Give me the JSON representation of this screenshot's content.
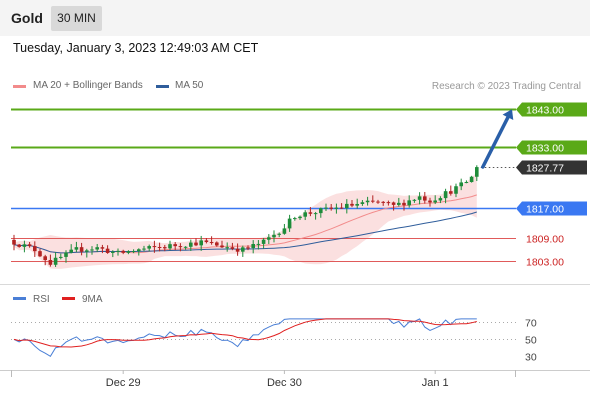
{
  "header": {
    "symbol": "Gold",
    "timeframe": "30 MIN",
    "datetime": "Tuesday, January 3, 2023 12:49:03 AM CET"
  },
  "legend": {
    "items": [
      {
        "label": "MA 20 + Bollinger Bands",
        "color": "#f28b8b"
      },
      {
        "label": "MA 50",
        "color": "#2f5d9b"
      }
    ],
    "copyright": "Research © 2023 Trading Central"
  },
  "colors": {
    "up": "#1e8c3a",
    "down": "#b22222",
    "resistance": "#5aa918",
    "pivot": "#3a78f2",
    "support": "#e05a5a",
    "arrow": "#2a5fa8",
    "last_price": "#333333",
    "band_fill": "#f9d6d6",
    "rsi": "#4a7fd6",
    "rsi_ma": "#e02020"
  },
  "chart_data": [
    {
      "type": "candlestick",
      "title": "Gold",
      "y_scale": {
        "min": 1797.5,
        "max": 1846.5
      },
      "x_ticks": [
        {
          "label": "Dec 29",
          "bar": 21
        },
        {
          "label": "Dec 30",
          "bar": 52
        },
        {
          "label": "Jan 1",
          "bar": 81
        }
      ],
      "levels": [
        {
          "value": 1843.0,
          "label": "1843.00",
          "kind": "resistance"
        },
        {
          "value": 1833.0,
          "label": "1833.00",
          "kind": "resistance"
        },
        {
          "value": 1827.77,
          "label": "1827.77",
          "kind": "last_price"
        },
        {
          "value": 1817.0,
          "label": "1817.00",
          "kind": "pivot"
        },
        {
          "value": 1809.0,
          "label": "1809.00",
          "kind": "support"
        },
        {
          "value": 1803.0,
          "label": "1803.00",
          "kind": "support"
        }
      ],
      "arrow": {
        "from_price": 1827.8,
        "to_price": 1843.0
      },
      "series": [
        {
          "name": "MA 20 + Bollinger Bands"
        },
        {
          "name": "MA 50"
        }
      ]
    },
    {
      "type": "line",
      "title": "RSI",
      "y_ticks": [
        70,
        50,
        30
      ],
      "ylim": [
        20,
        75
      ],
      "series": [
        {
          "name": "RSI"
        },
        {
          "name": "9MA"
        }
      ]
    }
  ]
}
